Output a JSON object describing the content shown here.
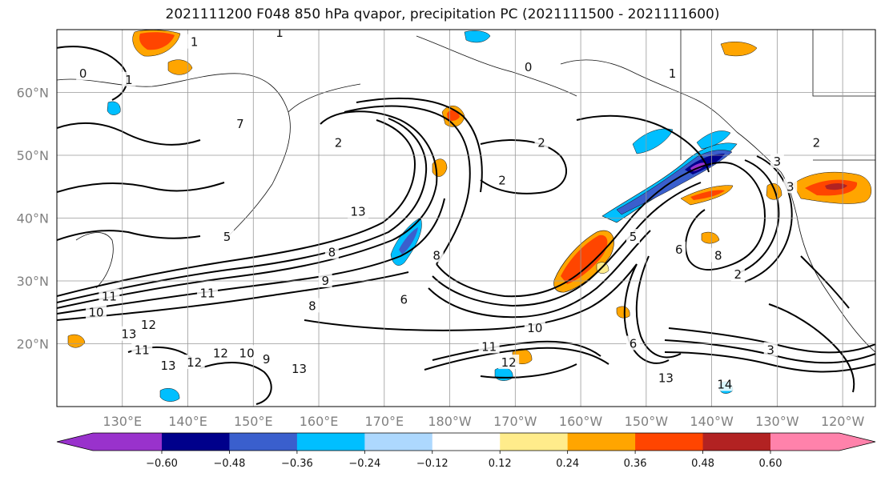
{
  "title": "2021111200 F048 850 hPa qvapor, precipitation PC (2021111500 - 2021111600)",
  "map": {
    "projection": "PlateCarree",
    "lon_range": [
      120,
      245
    ],
    "lat_range": [
      10,
      70
    ],
    "gridlines": true,
    "coastlines": true,
    "lat_labels": [
      {
        "lat": 60,
        "label": "60°N"
      },
      {
        "lat": 50,
        "label": "50°N"
      },
      {
        "lat": 40,
        "label": "40°N"
      },
      {
        "lat": 30,
        "label": "30°N"
      },
      {
        "lat": 20,
        "label": "20°N"
      }
    ],
    "lon_labels": [
      {
        "lon": 130,
        "label": "130°E"
      },
      {
        "lon": 140,
        "label": "140°E"
      },
      {
        "lon": 150,
        "label": "150°E"
      },
      {
        "lon": 160,
        "label": "160°E"
      },
      {
        "lon": 170,
        "label": "170°E"
      },
      {
        "lon": 180,
        "label": "180°W"
      },
      {
        "lon": 190,
        "label": "170°W"
      },
      {
        "lon": 200,
        "label": "160°W"
      },
      {
        "lon": 210,
        "label": "150°W"
      },
      {
        "lon": 220,
        "label": "140°W"
      },
      {
        "lon": 230,
        "label": "130°W"
      },
      {
        "lon": 240,
        "label": "120°W"
      }
    ],
    "contour_labels": [
      {
        "lon": 128,
        "lat": 27.5,
        "text": "11"
      },
      {
        "lon": 126,
        "lat": 25,
        "text": "10"
      },
      {
        "lon": 131,
        "lat": 21.5,
        "text": "13"
      },
      {
        "lon": 134,
        "lat": 23,
        "text": "12"
      },
      {
        "lon": 133,
        "lat": 19,
        "text": "11"
      },
      {
        "lon": 137,
        "lat": 16.5,
        "text": "13"
      },
      {
        "lon": 141,
        "lat": 17,
        "text": "12"
      },
      {
        "lon": 143,
        "lat": 28,
        "text": "11"
      },
      {
        "lon": 146,
        "lat": 37,
        "text": "5"
      },
      {
        "lon": 145,
        "lat": 18.5,
        "text": "12"
      },
      {
        "lon": 149,
        "lat": 18.5,
        "text": "10"
      },
      {
        "lon": 152,
        "lat": 17.5,
        "text": "9"
      },
      {
        "lon": 157,
        "lat": 16,
        "text": "13"
      },
      {
        "lon": 159,
        "lat": 26,
        "text": "8"
      },
      {
        "lon": 161,
        "lat": 30,
        "text": "9"
      },
      {
        "lon": 162,
        "lat": 34.5,
        "text": "8"
      },
      {
        "lon": 166,
        "lat": 41,
        "text": "13"
      },
      {
        "lon": 163,
        "lat": 52,
        "text": "2"
      },
      {
        "lon": 148,
        "lat": 55,
        "text": "7"
      },
      {
        "lon": 124,
        "lat": 63,
        "text": "0"
      },
      {
        "lon": 131,
        "lat": 62,
        "text": "1"
      },
      {
        "lon": 141,
        "lat": 68,
        "text": "1"
      },
      {
        "lon": 154,
        "lat": 69.5,
        "text": "1"
      },
      {
        "lon": 173,
        "lat": 27,
        "text": "6"
      },
      {
        "lon": 178,
        "lat": 34,
        "text": "8"
      },
      {
        "lon": 186,
        "lat": 19.5,
        "text": "11"
      },
      {
        "lon": 189,
        "lat": 17,
        "text": "12"
      },
      {
        "lon": 193,
        "lat": 22.5,
        "text": "10"
      },
      {
        "lon": 188,
        "lat": 46,
        "text": "2"
      },
      {
        "lon": 194,
        "lat": 52,
        "text": "2"
      },
      {
        "lon": 192,
        "lat": 64,
        "text": "0"
      },
      {
        "lon": 208,
        "lat": 37,
        "text": "5"
      },
      {
        "lon": 208,
        "lat": 20,
        "text": "6"
      },
      {
        "lon": 215,
        "lat": 35,
        "text": "6"
      },
      {
        "lon": 213,
        "lat": 14.5,
        "text": "13"
      },
      {
        "lon": 221,
        "lat": 34,
        "text": "8"
      },
      {
        "lon": 224,
        "lat": 31,
        "text": "2"
      },
      {
        "lon": 222,
        "lat": 13.5,
        "text": "14"
      },
      {
        "lon": 229,
        "lat": 19,
        "text": "3"
      },
      {
        "lon": 232,
        "lat": 45,
        "text": "3"
      },
      {
        "lon": 230,
        "lat": 49,
        "text": "3"
      },
      {
        "lon": 236,
        "lat": 52,
        "text": "2"
      },
      {
        "lon": 214,
        "lat": 63,
        "text": "1"
      }
    ]
  },
  "colorbar": {
    "ticks": [
      "−0.60",
      "−0.48",
      "−0.36",
      "−0.24",
      "−0.12",
      "0.12",
      "0.24",
      "0.36",
      "0.48",
      "0.60"
    ],
    "colors": [
      "#9932cc",
      "#00008b",
      "#3a5fcd",
      "#00bfff",
      "#add8fe",
      "#ffffff",
      "#ffec8b",
      "#ffa500",
      "#ff4500",
      "#b22222",
      "#ff82ab"
    ],
    "extend": "both"
  }
}
